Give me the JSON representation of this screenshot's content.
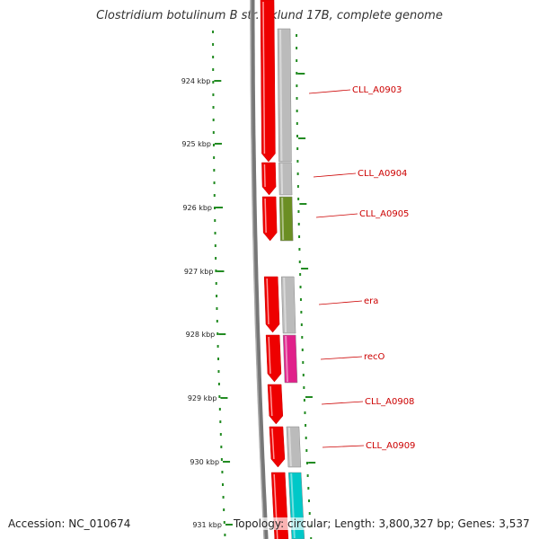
{
  "title": "Clostridium botulinum B str. Eklund 17B, complete genome",
  "footer": {
    "accession": "Accession: NC_010674",
    "topology": "Topology: circular; Length: 3,800,327 bp; Genes: 3,537"
  },
  "ticks": [
    "924 kbp",
    "925 kbp",
    "926 kbp",
    "927 kbp",
    "928 kbp",
    "929 kbp",
    "930 kbp",
    "931 kbp"
  ],
  "genes": [
    {
      "label": "CLL_A0903",
      "color": "#bbbbbb"
    },
    {
      "label": "CLL_A0904",
      "color": "#bbbbbb"
    },
    {
      "label": "CLL_A0905",
      "color": "#6b8e23"
    },
    {
      "label": "era",
      "color": "#bbbbbb"
    },
    {
      "label": "recO",
      "color": "#e0218a"
    },
    {
      "label": "CLL_A0908",
      "color": "#bbbbbb"
    },
    {
      "label": "CLL_A0909",
      "color": "#bbbbbb"
    }
  ],
  "colors": {
    "strand": "#ee0000",
    "backbone": "#777777",
    "tick_mark": "#228b22",
    "label_line": "#cc0000",
    "cyan_feature": "#00c8c8"
  }
}
